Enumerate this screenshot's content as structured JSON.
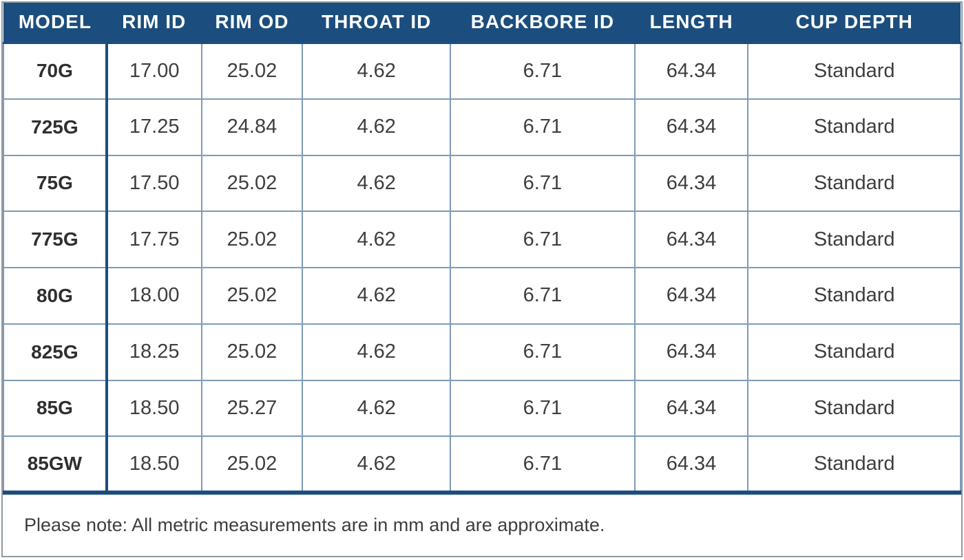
{
  "table": {
    "columns": [
      {
        "key": "model",
        "label": "MODEL"
      },
      {
        "key": "rim-id",
        "label": "RIM ID"
      },
      {
        "key": "rim-od",
        "label": "RIM OD"
      },
      {
        "key": "throat-id",
        "label": "THROAT ID"
      },
      {
        "key": "backbore-id",
        "label": "BACKBORE ID"
      },
      {
        "key": "length",
        "label": "LENGTH"
      },
      {
        "key": "cup-depth",
        "label": "CUP DEPTH"
      }
    ],
    "rows": [
      [
        "70G",
        "17.00",
        "25.02",
        "4.62",
        "6.71",
        "64.34",
        "Standard"
      ],
      [
        "725G",
        "17.25",
        "24.84",
        "4.62",
        "6.71",
        "64.34",
        "Standard"
      ],
      [
        "75G",
        "17.50",
        "25.02",
        "4.62",
        "6.71",
        "64.34",
        "Standard"
      ],
      [
        "775G",
        "17.75",
        "25.02",
        "4.62",
        "6.71",
        "64.34",
        "Standard"
      ],
      [
        "80G",
        "18.00",
        "25.02",
        "4.62",
        "6.71",
        "64.34",
        "Standard"
      ],
      [
        "825G",
        "18.25",
        "25.02",
        "4.62",
        "6.71",
        "64.34",
        "Standard"
      ],
      [
        "85G",
        "18.50",
        "25.27",
        "4.62",
        "6.71",
        "64.34",
        "Standard"
      ],
      [
        "85GW",
        "18.50",
        "25.02",
        "4.62",
        "6.71",
        "64.34",
        "Standard"
      ]
    ],
    "note": "Please note: All metric measurements are in mm and are approximate."
  },
  "colors": {
    "header_bg": "#1b4e7e",
    "header_text": "#ffffff",
    "grid_line": "#7d9ab8",
    "thick_line": "#1b4e7e",
    "body_text": "#3e3e3e",
    "outer_border": "#8e99a2"
  }
}
